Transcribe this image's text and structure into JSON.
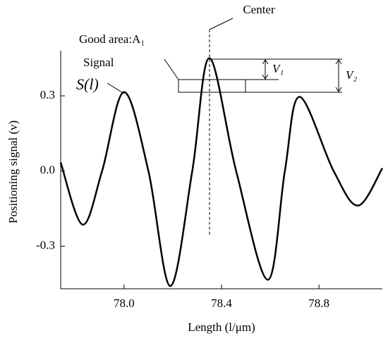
{
  "chart_data": {
    "type": "line",
    "x_label": "Length (l/μm)",
    "y_label": "Positioning signal (v)",
    "x": [
      77.74,
      77.83,
      77.91,
      78.0,
      78.1,
      78.19,
      78.28,
      78.35,
      78.46,
      78.59,
      78.66,
      78.72,
      78.86,
      78.96,
      79.06
    ],
    "series": [
      {
        "name": "Signal",
        "color": "#000000",
        "values": [
          0.034,
          -0.214,
          0.0,
          0.315,
          0.0,
          -0.459,
          0.0,
          0.45,
          0.0,
          -0.434,
          0.0,
          0.296,
          0.0,
          -0.138,
          0.011
        ]
      }
    ],
    "xlim": [
      77.74,
      79.06
    ],
    "ylim": [
      -0.47,
      0.48
    ],
    "xticks": [
      {
        "value": 78,
        "label": "78.0"
      },
      78.4,
      78.8
    ],
    "yticks": [
      -0.3,
      {
        "value": 0,
        "label": "0.0"
      },
      0.3
    ],
    "annotations": {
      "center": "Center",
      "good_area": "Good area:A₁",
      "signal_symbol": "S(l)",
      "v1": "V₁",
      "v2": "V₂"
    }
  }
}
